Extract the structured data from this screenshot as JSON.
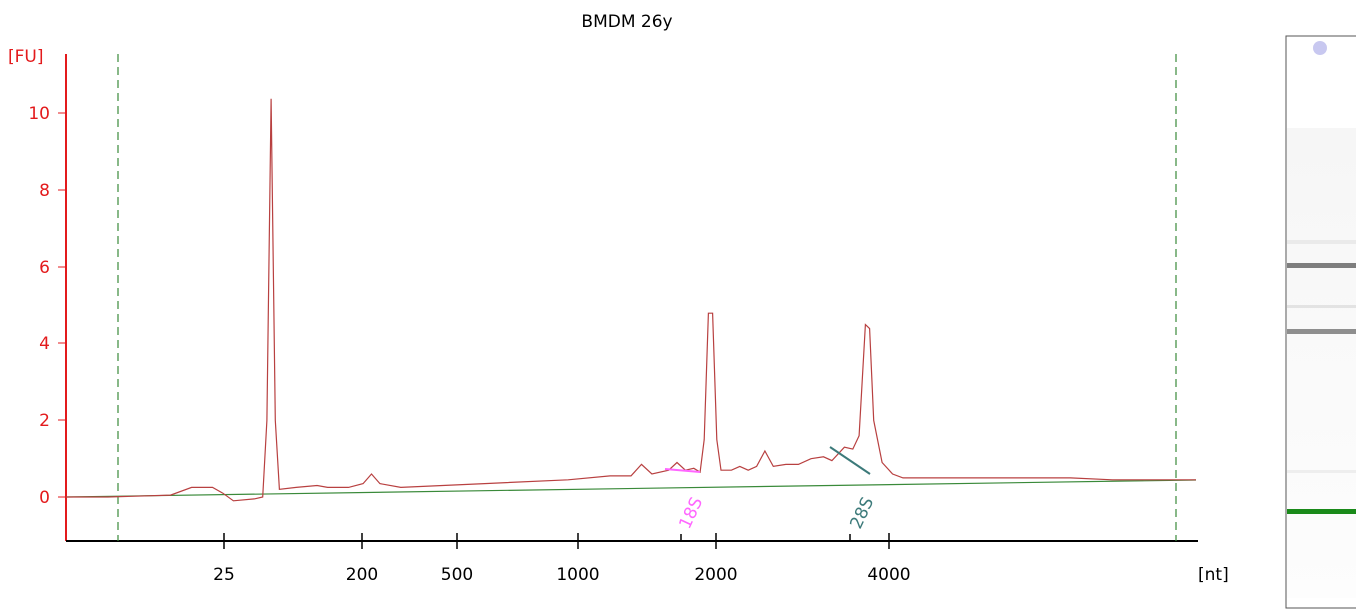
{
  "colors": {
    "y_axis": "#e31a1c",
    "x_axis": "#000000",
    "trace": "#b84040",
    "baseline": "#3a8a3a",
    "marker_lines": "#3a8a3a",
    "peak_18s": "#ff66ff",
    "peak_28s": "#3c7a7a",
    "gel_band": "#555555",
    "gel_marker_band": "#1a8a1a",
    "gel_dot": "#c8c8f0"
  },
  "chart_data": {
    "type": "line",
    "title": "BMDM 26y",
    "ylabel": "[FU]",
    "xlabel": "[nt]",
    "ylim": [
      -1.2,
      11.8
    ],
    "yticks": [
      "0",
      "2",
      "4",
      "6",
      "8",
      "10"
    ],
    "xticks": [
      "25",
      "200",
      "500",
      "1000",
      "2000",
      "4000"
    ],
    "vertical_markers": "dashed",
    "series": [
      {
        "values": "electropherogram trace (fluorescence vs size)",
        "points": [
          [
            0,
            0.0
          ],
          [
            20,
            0.0
          ],
          [
            50,
            0.05
          ],
          [
            60,
            0.25
          ],
          [
            70,
            0.25
          ],
          [
            75,
            0.1
          ],
          [
            80,
            -0.1
          ],
          [
            90,
            -0.05
          ],
          [
            94,
            0.0
          ],
          [
            96,
            2.0
          ],
          [
            98,
            10.4
          ],
          [
            100,
            2.0
          ],
          [
            102,
            0.2
          ],
          [
            110,
            0.25
          ],
          [
            120,
            0.3
          ],
          [
            125,
            0.25
          ],
          [
            135,
            0.25
          ],
          [
            142,
            0.35
          ],
          [
            146,
            0.6
          ],
          [
            150,
            0.35
          ],
          [
            160,
            0.25
          ],
          [
            180,
            0.3
          ],
          [
            200,
            0.35
          ],
          [
            240,
            0.45
          ],
          [
            260,
            0.55
          ],
          [
            270,
            0.55
          ],
          [
            275,
            0.85
          ],
          [
            280,
            0.6
          ],
          [
            288,
            0.7
          ],
          [
            292,
            0.9
          ],
          [
            296,
            0.7
          ],
          [
            300,
            0.75
          ],
          [
            303,
            0.65
          ],
          [
            305,
            1.5
          ],
          [
            307,
            4.8
          ],
          [
            309,
            4.8
          ],
          [
            311,
            1.5
          ],
          [
            313,
            0.7
          ],
          [
            318,
            0.7
          ],
          [
            322,
            0.8
          ],
          [
            326,
            0.7
          ],
          [
            330,
            0.8
          ],
          [
            334,
            1.2
          ],
          [
            338,
            0.8
          ],
          [
            344,
            0.85
          ],
          [
            350,
            0.85
          ],
          [
            356,
            1.0
          ],
          [
            362,
            1.05
          ],
          [
            366,
            0.95
          ],
          [
            372,
            1.3
          ],
          [
            376,
            1.25
          ],
          [
            379,
            1.6
          ],
          [
            382,
            4.5
          ],
          [
            384,
            4.4
          ],
          [
            386,
            2.0
          ],
          [
            390,
            0.9
          ],
          [
            395,
            0.6
          ],
          [
            400,
            0.5
          ],
          [
            440,
            0.5
          ],
          [
            480,
            0.5
          ],
          [
            500,
            0.45
          ],
          [
            540,
            0.45
          ]
        ]
      },
      {
        "name": "baseline",
        "points": [
          [
            0,
            0.0
          ],
          [
            540,
            0.45
          ]
        ]
      }
    ],
    "peaks": [
      {
        "label": "18S"
      },
      {
        "label": "28S"
      }
    ]
  }
}
